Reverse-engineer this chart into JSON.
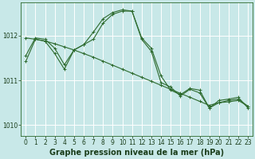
{
  "background_color": "#c8e8e8",
  "grid_color": "#ffffff",
  "line_color": "#2d6a2d",
  "marker": "+",
  "xlabel": "Graphe pression niveau de la mer (hPa)",
  "xlabel_fontsize": 7,
  "xlabel_bold": true,
  "xlabel_color": "#1a3d1a",
  "tick_color": "#1a3d1a",
  "tick_fontsize": 5.5,
  "ylim": [
    1009.75,
    1012.75
  ],
  "xlim": [
    -0.5,
    23.5
  ],
  "yticks": [
    1010,
    1011,
    1012
  ],
  "xticks": [
    0,
    1,
    2,
    3,
    4,
    5,
    6,
    7,
    8,
    9,
    10,
    11,
    12,
    13,
    14,
    15,
    16,
    17,
    18,
    19,
    20,
    21,
    22,
    23
  ],
  "series_straight": [
    1011.95,
    1011.92,
    1011.88,
    1011.82,
    1011.75,
    1011.68,
    1011.6,
    1011.52,
    1011.43,
    1011.34,
    1011.25,
    1011.16,
    1011.07,
    1010.98,
    1010.89,
    1010.8,
    1010.71,
    1010.62,
    1010.53,
    1010.44,
    1010.5,
    1010.52,
    1010.55,
    1010.42
  ],
  "series_curve1": [
    1011.55,
    1011.95,
    1011.92,
    1011.72,
    1011.35,
    1011.68,
    1011.8,
    1012.08,
    1012.38,
    1012.52,
    1012.58,
    1012.55,
    1011.95,
    1011.72,
    1011.1,
    1010.78,
    1010.68,
    1010.82,
    1010.78,
    1010.38,
    1010.55,
    1010.58,
    1010.62,
    1010.38
  ],
  "series_curve2": [
    1011.42,
    1011.92,
    1011.88,
    1011.6,
    1011.25,
    1011.68,
    1011.8,
    1011.92,
    1012.28,
    1012.48,
    1012.55,
    1012.55,
    1011.92,
    1011.65,
    1010.95,
    1010.85,
    1010.65,
    1010.8,
    1010.72,
    1010.38,
    1010.5,
    1010.55,
    1010.58,
    1010.42
  ]
}
